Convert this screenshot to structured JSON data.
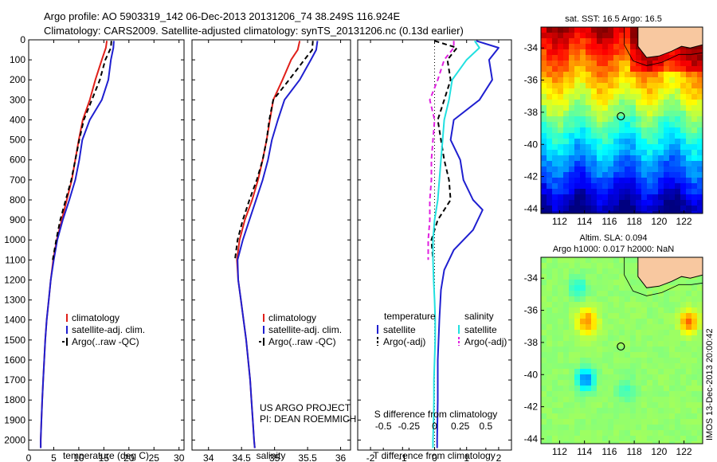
{
  "header": {
    "line1": "Argo profile: AO 5903319_142 06-Dec-2013 20131206_74 38.249S 116.924E",
    "line2": "Climatology: CARS2009. Satellite-adjusted climatology: synTS_20131206.nc (0.13d earlier)"
  },
  "credits": {
    "line1": "US ARGO PROJECT",
    "line2": "PI: DEAN ROEMMICH"
  },
  "side_label": "IMOS 13-Dec-2013 20:00:42",
  "colors": {
    "climatology": "#e0201a",
    "satellite": "#1f1fd0",
    "argo": "#000000",
    "s_satellite": "#22e0e0",
    "s_argo": "#e020e0",
    "land": "#f8c8a0"
  },
  "chart_data": [
    {
      "type": "line",
      "panel": "temperature",
      "xlabel": "temperature (deg C)",
      "xlim": [
        0,
        31
      ],
      "xticks": [
        0,
        5,
        10,
        15,
        20,
        25,
        30
      ],
      "ylim": [
        2050,
        0
      ],
      "yticks": [
        0,
        100,
        200,
        300,
        400,
        500,
        600,
        700,
        800,
        900,
        1000,
        1100,
        1200,
        1300,
        1400,
        1500,
        1600,
        1700,
        1800,
        1900,
        2000
      ],
      "legend": [
        "climatology",
        "satellite-adj. clim.",
        "Argo(..raw -QC)"
      ],
      "series": [
        {
          "name": "climatology",
          "style": "solid",
          "color": "#e0201a",
          "points": [
            [
              15.6,
              5
            ],
            [
              15.4,
              40
            ],
            [
              14.6,
              100
            ],
            [
              13.3,
              200
            ],
            [
              12.2,
              300
            ],
            [
              10.8,
              400
            ],
            [
              10.0,
              500
            ],
            [
              9.3,
              600
            ],
            [
              8.6,
              700
            ],
            [
              7.6,
              800
            ],
            [
              6.6,
              900
            ],
            [
              5.6,
              1000
            ],
            [
              4.9,
              1100
            ],
            [
              4.4,
              1200
            ],
            [
              4.0,
              1300
            ],
            [
              3.6,
              1400
            ],
            [
              3.3,
              1500
            ],
            [
              3.1,
              1600
            ],
            [
              2.9,
              1700
            ],
            [
              2.7,
              1800
            ],
            [
              2.55,
              1900
            ],
            [
              2.4,
              2000
            ],
            [
              2.4,
              2040
            ]
          ]
        },
        {
          "name": "satellite-adj. clim.",
          "style": "solid",
          "color": "#1f1fd0",
          "points": [
            [
              17.0,
              5
            ],
            [
              16.9,
              40
            ],
            [
              16.4,
              100
            ],
            [
              15.9,
              200
            ],
            [
              14.6,
              300
            ],
            [
              12.2,
              400
            ],
            [
              10.7,
              500
            ],
            [
              10.1,
              600
            ],
            [
              9.3,
              700
            ],
            [
              8.1,
              800
            ],
            [
              6.8,
              900
            ],
            [
              5.7,
              1000
            ],
            [
              5.0,
              1100
            ],
            [
              4.4,
              1200
            ],
            [
              4.0,
              1300
            ],
            [
              3.6,
              1400
            ],
            [
              3.3,
              1500
            ],
            [
              3.1,
              1600
            ],
            [
              2.9,
              1700
            ],
            [
              2.7,
              1800
            ],
            [
              2.55,
              1900
            ],
            [
              2.4,
              2000
            ],
            [
              2.4,
              2040
            ]
          ]
        },
        {
          "name": "Argo(..raw -QC)",
          "style": "dashed",
          "color": "#000000",
          "points": [
            [
              16.5,
              5
            ],
            [
              16.4,
              40
            ],
            [
              15.3,
              100
            ],
            [
              14.2,
              200
            ],
            [
              12.6,
              300
            ],
            [
              11.0,
              400
            ],
            [
              10.1,
              500
            ],
            [
              9.3,
              600
            ],
            [
              8.5,
              700
            ],
            [
              7.4,
              800
            ],
            [
              6.3,
              900
            ],
            [
              5.5,
              1000
            ],
            [
              4.8,
              1100
            ]
          ]
        }
      ]
    },
    {
      "type": "line",
      "panel": "salinity",
      "xlabel": "salinity",
      "xlim": [
        33.75,
        36.15
      ],
      "xticks": [
        34,
        34.5,
        35,
        35.5,
        36
      ],
      "ylim": [
        2050,
        0
      ],
      "legend": [
        "climatology",
        "satellite-adj. clim.",
        "Argo(..raw -QC)"
      ],
      "series": [
        {
          "name": "climatology",
          "style": "solid",
          "color": "#e0201a",
          "points": [
            [
              35.38,
              5
            ],
            [
              35.35,
              50
            ],
            [
              35.25,
              100
            ],
            [
              35.12,
              200
            ],
            [
              34.98,
              300
            ],
            [
              34.93,
              400
            ],
            [
              34.88,
              500
            ],
            [
              34.82,
              600
            ],
            [
              34.75,
              700
            ],
            [
              34.66,
              800
            ],
            [
              34.55,
              900
            ],
            [
              34.47,
              1000
            ],
            [
              34.43,
              1100
            ],
            [
              34.45,
              1200
            ],
            [
              34.49,
              1300
            ],
            [
              34.53,
              1400
            ],
            [
              34.57,
              1500
            ],
            [
              34.6,
              1600
            ],
            [
              34.63,
              1700
            ],
            [
              34.65,
              1800
            ],
            [
              34.67,
              1900
            ],
            [
              34.69,
              2000
            ],
            [
              34.7,
              2040
            ]
          ]
        },
        {
          "name": "satellite-adj. clim.",
          "style": "solid",
          "color": "#1f1fd0",
          "points": [
            [
              35.65,
              5
            ],
            [
              35.63,
              50
            ],
            [
              35.55,
              100
            ],
            [
              35.38,
              200
            ],
            [
              35.15,
              300
            ],
            [
              35.05,
              400
            ],
            [
              34.96,
              500
            ],
            [
              34.9,
              600
            ],
            [
              34.82,
              700
            ],
            [
              34.72,
              800
            ],
            [
              34.62,
              900
            ],
            [
              34.52,
              1000
            ],
            [
              34.44,
              1100
            ],
            [
              34.45,
              1200
            ],
            [
              34.49,
              1300
            ],
            [
              34.53,
              1400
            ],
            [
              34.57,
              1500
            ],
            [
              34.6,
              1600
            ],
            [
              34.63,
              1700
            ],
            [
              34.65,
              1800
            ],
            [
              34.67,
              1900
            ],
            [
              34.69,
              2000
            ],
            [
              34.7,
              2040
            ]
          ]
        },
        {
          "name": "Argo(..raw -QC)",
          "style": "dashed",
          "color": "#000000",
          "points": [
            [
              35.58,
              5
            ],
            [
              35.57,
              50
            ],
            [
              35.45,
              100
            ],
            [
              35.22,
              200
            ],
            [
              34.98,
              300
            ],
            [
              34.92,
              400
            ],
            [
              34.88,
              500
            ],
            [
              34.82,
              600
            ],
            [
              34.73,
              700
            ],
            [
              34.62,
              800
            ],
            [
              34.52,
              900
            ],
            [
              34.44,
              1000
            ],
            [
              34.4,
              1100
            ]
          ]
        }
      ]
    },
    {
      "type": "line",
      "panel": "difference",
      "xlabel": "T difference from climatology",
      "xlabel_top": "S difference from climatology",
      "xlim": [
        -2.4,
        2.4
      ],
      "xticks": [
        -2,
        -1,
        0,
        1,
        2
      ],
      "xticks_top": [
        {
          "label": "-0.5",
          "t": -1.6
        },
        {
          "label": "-0.25",
          "t": -0.8
        },
        {
          "label": "0",
          "t": 0
        },
        {
          "label": "0.25",
          "t": 0.8
        },
        {
          "label": "0.5",
          "t": 1.6
        }
      ],
      "ylim": [
        2050,
        0
      ],
      "legend_headers": [
        "temperature",
        "salinity"
      ],
      "legend": [
        "satellite",
        "Argo(-adj)",
        "satellite",
        "Argo(-adj)"
      ],
      "series": [
        {
          "name": "satellite",
          "style": "solid",
          "color": "#1f1fd0",
          "points": [
            [
              1.3,
              5
            ],
            [
              2.0,
              40
            ],
            [
              1.7,
              100
            ],
            [
              1.8,
              200
            ],
            [
              1.4,
              300
            ],
            [
              0.6,
              400
            ],
            [
              0.5,
              500
            ],
            [
              0.8,
              600
            ],
            [
              0.9,
              700
            ],
            [
              1.2,
              800
            ],
            [
              1.5,
              850
            ],
            [
              1.2,
              950
            ],
            [
              0.6,
              1050
            ],
            [
              0.3,
              1150
            ],
            [
              0.2,
              1250
            ],
            [
              0.15,
              1400
            ],
            [
              0.1,
              1600
            ],
            [
              0.1,
              1800
            ],
            [
              0.08,
              2000
            ],
            [
              0.08,
              2040
            ]
          ]
        },
        {
          "name": "Argo(-adj)",
          "style": "dashed",
          "color": "#000000",
          "points": [
            [
              0.0,
              5
            ],
            [
              0.7,
              40
            ],
            [
              0.4,
              100
            ],
            [
              0.5,
              200
            ],
            [
              0.3,
              300
            ],
            [
              0.1,
              400
            ],
            [
              0.2,
              500
            ],
            [
              0.3,
              600
            ],
            [
              0.45,
              700
            ],
            [
              0.5,
              800
            ],
            [
              0.1,
              900
            ],
            [
              -0.1,
              1000
            ],
            [
              -0.05,
              1100
            ]
          ]
        },
        {
          "name": "satellite",
          "style": "solid",
          "color": "#22e0e0",
          "points": [
            [
              1.25,
              5
            ],
            [
              1.4,
              40
            ],
            [
              1.0,
              100
            ],
            [
              0.55,
              200
            ],
            [
              0.45,
              300
            ],
            [
              0.3,
              400
            ],
            [
              0.25,
              500
            ],
            [
              0.2,
              600
            ],
            [
              0.15,
              700
            ],
            [
              0.1,
              800
            ],
            [
              0.0,
              900
            ],
            [
              -0.05,
              1000
            ],
            [
              -0.05,
              1100
            ],
            [
              -0.03,
              1200
            ],
            [
              0.0,
              1300
            ],
            [
              0.02,
              1400
            ],
            [
              0.02,
              1500
            ],
            [
              0.0,
              1600
            ],
            [
              -0.02,
              1700
            ],
            [
              -0.02,
              1800
            ],
            [
              -0.03,
              1900
            ],
            [
              -0.05,
              2000
            ],
            [
              -0.05,
              2040
            ]
          ]
        },
        {
          "name": "Argo(-adj)",
          "style": "dashed",
          "color": "#e020e0",
          "points": [
            [
              0.6,
              5
            ],
            [
              0.6,
              40
            ],
            [
              0.3,
              100
            ],
            [
              0.1,
              200
            ],
            [
              -0.15,
              300
            ],
            [
              0.0,
              400
            ],
            [
              -0.05,
              500
            ],
            [
              -0.1,
              600
            ],
            [
              -0.1,
              700
            ],
            [
              -0.15,
              800
            ],
            [
              -0.15,
              900
            ],
            [
              -0.2,
              1000
            ],
            [
              -0.2,
              1100
            ]
          ]
        }
      ]
    },
    {
      "type": "heatmap",
      "panel": "sst-map",
      "title": "sat. SST: 16.5 Argo: 16.5",
      "xlim": [
        110.5,
        123.5
      ],
      "ylim": [
        -44.3,
        -32.7
      ],
      "xticks": [
        112,
        114,
        116,
        118,
        120,
        122
      ],
      "yticks": [
        -34,
        -36,
        -38,
        -40,
        -42,
        -44
      ],
      "marker": {
        "lon": 116.924,
        "lat": -38.249
      }
    },
    {
      "type": "heatmap",
      "panel": "sla-map",
      "title_line1": "Altim. SLA: 0.094",
      "title_line2": "Argo h1000: 0.017 h2000: NaN",
      "xlim": [
        110.5,
        123.5
      ],
      "ylim": [
        -44.3,
        -32.7
      ],
      "xticks": [
        112,
        114,
        116,
        118,
        120,
        122
      ],
      "yticks": [
        -34,
        -36,
        -38,
        -40,
        -42,
        -44
      ],
      "marker": {
        "lon": 116.924,
        "lat": -38.249
      }
    }
  ]
}
